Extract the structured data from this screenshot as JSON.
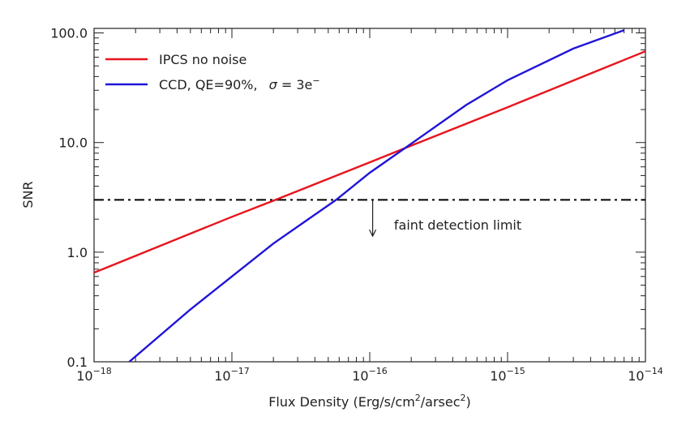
{
  "chart_data": {
    "type": "line",
    "title": "",
    "xlabel": {
      "prefix": "Flux Density (Erg/s/cm",
      "sup1": "2",
      "middle": "/arsec",
      "sup2": "2",
      "suffix": ")"
    },
    "ylabel": "SNR",
    "x_scale": "log",
    "y_scale": "log",
    "xlim": [
      1e-18,
      1e-14
    ],
    "ylim": [
      0.1,
      110
    ],
    "grid": false,
    "legend_position": "top-left",
    "x_ticks": [
      {
        "value": 1e-18,
        "base": "10",
        "exp": "−18"
      },
      {
        "value": 1e-17,
        "base": "10",
        "exp": "−17"
      },
      {
        "value": 1e-16,
        "base": "10",
        "exp": "−16"
      },
      {
        "value": 1e-15,
        "base": "10",
        "exp": "−15"
      },
      {
        "value": 1e-14,
        "base": "10",
        "exp": "−14"
      }
    ],
    "y_ticks": [
      {
        "value": 0.1,
        "label": "0.1"
      },
      {
        "value": 1.0,
        "label": "1.0"
      },
      {
        "value": 10.0,
        "label": "10.0"
      },
      {
        "value": 100.0,
        "label": "100.0"
      }
    ],
    "series": [
      {
        "name": "IPCS no noise",
        "color": "#e8141c",
        "x": [
          1e-18,
          1e-17,
          2e-17,
          1e-16,
          1.8e-16,
          1e-15,
          1e-14
        ],
        "y": [
          0.65,
          2.1,
          2.95,
          6.6,
          8.9,
          21,
          68
        ]
      },
      {
        "name_parts": {
          "main": "CCD, QE=90%,",
          "sigma": "σ",
          "eq": " = 3e",
          "sup": "−"
        },
        "color": "#2014d8",
        "x": [
          1.8e-18,
          5e-18,
          1e-17,
          2e-17,
          5.7e-17,
          1e-16,
          1.8e-16,
          5e-16,
          1e-15,
          3e-15,
          7e-15
        ],
        "y": [
          0.1,
          0.3,
          0.6,
          1.2,
          3.0,
          5.3,
          8.9,
          22,
          37,
          72,
          106
        ]
      }
    ],
    "reference_line": {
      "y": 3.0,
      "style": "dash-dot",
      "color": "#000000"
    },
    "annotation": {
      "text": "faint detection limit",
      "arrow_x": 1.05e-16,
      "arrow_from_y": 3.0,
      "arrow_to_y": 1.4,
      "text_x": 1.5e-16,
      "text_y": 1.78
    }
  }
}
